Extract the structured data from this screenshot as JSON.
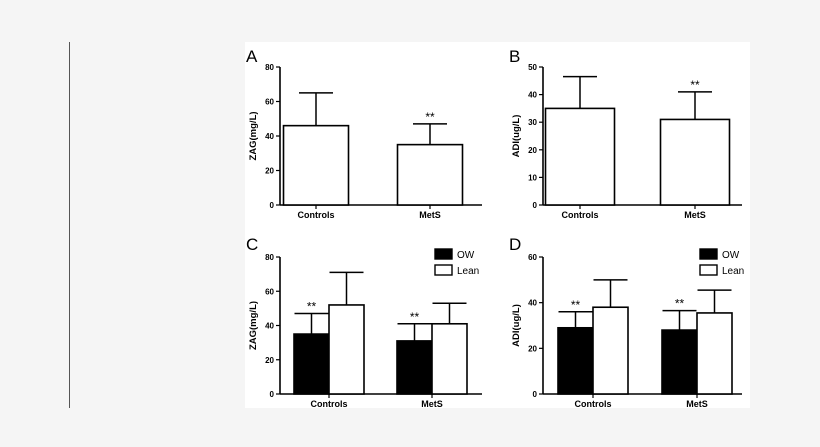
{
  "chart_data": [
    {
      "type": "bar",
      "panel_letter": "A",
      "ylabel": "ZAG(mg/L)",
      "ylim": [
        0,
        80
      ],
      "yticks": [
        0,
        20,
        40,
        60,
        80
      ],
      "categories": [
        "Controls",
        "MetS"
      ],
      "series": [
        {
          "color": "#ffffff",
          "values": [
            46,
            35
          ],
          "error": [
            19,
            12
          ],
          "significance": [
            "",
            "**"
          ]
        }
      ],
      "legend": []
    },
    {
      "type": "bar",
      "panel_letter": "B",
      "ylabel": "ADI(ug/L)",
      "ylim": [
        0,
        50
      ],
      "yticks": [
        0,
        10,
        20,
        30,
        40,
        50
      ],
      "categories": [
        "Controls",
        "MetS"
      ],
      "series": [
        {
          "color": "#ffffff",
          "values": [
            35,
            31
          ],
          "error": [
            11.5,
            10
          ],
          "significance": [
            "",
            "**"
          ]
        }
      ],
      "legend": []
    },
    {
      "type": "bar",
      "panel_letter": "C",
      "ylabel": "ZAG(mg/L)",
      "ylim": [
        0,
        80
      ],
      "yticks": [
        0,
        20,
        40,
        60,
        80
      ],
      "categories": [
        "Controls",
        "MetS"
      ],
      "series": [
        {
          "name": "OW",
          "color": "#000000",
          "values": [
            35,
            31
          ],
          "error": [
            12,
            10
          ],
          "significance": [
            "**",
            "**"
          ]
        },
        {
          "name": "Lean",
          "color": "#ffffff",
          "values": [
            52,
            41
          ],
          "error": [
            19,
            12
          ],
          "significance": [
            "",
            ""
          ]
        }
      ],
      "legend": [
        "OW",
        "Lean"
      ],
      "legend_position": "top-right"
    },
    {
      "type": "bar",
      "panel_letter": "D",
      "ylabel": "ADI(ug/L)",
      "ylim": [
        0,
        60
      ],
      "yticks": [
        0,
        20,
        40,
        60
      ],
      "categories": [
        "Controls",
        "MetS"
      ],
      "series": [
        {
          "name": "OW",
          "color": "#000000",
          "values": [
            29,
            28
          ],
          "error": [
            7,
            8.5
          ],
          "significance": [
            "**",
            "**"
          ]
        },
        {
          "name": "Lean",
          "color": "#ffffff",
          "values": [
            38,
            35.5
          ],
          "error": [
            12,
            10
          ],
          "significance": [
            "",
            ""
          ]
        }
      ],
      "legend": [
        "OW",
        "Lean"
      ],
      "legend_position": "top-right"
    }
  ]
}
